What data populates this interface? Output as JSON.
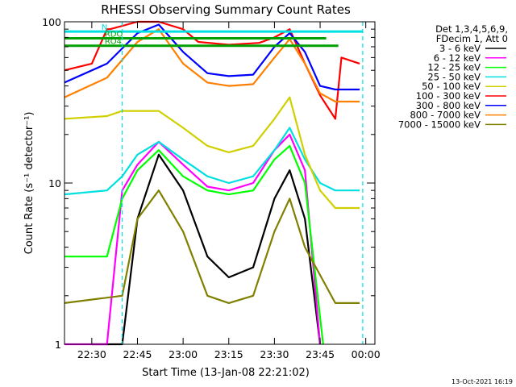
{
  "chart_data": {
    "type": "line",
    "title": "RHESSI Observing Summary Count Rates",
    "xlabel": "Start Time (13-Jan-08 22:21:02)",
    "ylabel": "Count Rate (s⁻¹ detector⁻¹)",
    "y_scale": "log",
    "ylim": [
      1,
      100
    ],
    "xlim": [
      "22:21:02",
      "00:03:00"
    ],
    "grid": false,
    "x_tick_labels": [
      "22:30",
      "22:45",
      "23:00",
      "23:15",
      "23:30",
      "23:45",
      "00:00"
    ],
    "x_tick_values": [
      "22:30",
      "22:45",
      "23:00",
      "23:15",
      "23:30",
      "23:45",
      "00:00"
    ],
    "y_tick_labels": [
      "1",
      "10",
      "100"
    ],
    "y_tick_values": [
      1,
      10,
      100
    ],
    "legend_placement": "right",
    "legend_header": [
      "Det 1,3,4,5,6,9,",
      "FDecim 1, Att 0"
    ],
    "footer_date": "13-Oct-2021 16:19",
    "flags": [
      {
        "label": "N",
        "color": "#00e0e0",
        "segments": [
          [
            "22:21",
            "23:59"
          ]
        ],
        "level": 87
      },
      {
        "label": "RDO",
        "color": "#00a000",
        "segments": [
          [
            "22:21",
            "23:47"
          ]
        ],
        "level": 79
      },
      {
        "label": "RO4",
        "color": "#00a000",
        "segments": [
          [
            "22:21",
            "23:51"
          ]
        ],
        "level": 71
      }
    ],
    "vlines": [
      {
        "time": "22:40",
        "color": "#00e0e0"
      },
      {
        "time": "23:59",
        "color": "#00e0e0"
      }
    ],
    "series": [
      {
        "name": "3 - 6 keV",
        "color": "#000000",
        "x": [
          "22:30",
          "22:40",
          "22:45",
          "22:52",
          "23:00",
          "23:08",
          "23:15",
          "23:23",
          "23:30",
          "23:35",
          "23:40",
          "23:45"
        ],
        "y": [
          1.0,
          1.0,
          6.0,
          15.0,
          9.0,
          3.5,
          2.6,
          3.0,
          8.0,
          12.0,
          6.0,
          1.0
        ]
      },
      {
        "name": "6 - 12 keV",
        "color": "#ff00ff",
        "x": [
          "22:21",
          "22:35",
          "22:40",
          "22:45",
          "22:52",
          "23:00",
          "23:08",
          "23:15",
          "23:23",
          "23:30",
          "23:35",
          "23:40",
          "23:45"
        ],
        "y": [
          1.0,
          1.0,
          9.0,
          13.0,
          18.0,
          13.0,
          9.5,
          9.0,
          10.0,
          16.0,
          20.0,
          12.0,
          1.0
        ]
      },
      {
        "name": "12 - 25 keV",
        "color": "#00ff00",
        "x": [
          "22:21",
          "22:35",
          "22:40",
          "22:45",
          "22:52",
          "23:00",
          "23:08",
          "23:15",
          "23:23",
          "23:30",
          "23:35",
          "23:40",
          "23:46"
        ],
        "y": [
          3.5,
          3.5,
          8.0,
          12.0,
          16.0,
          11.0,
          9.0,
          8.5,
          9.0,
          14.0,
          17.0,
          10.0,
          1.0
        ]
      },
      {
        "name": "25 - 50 keV",
        "color": "#00e0e0",
        "x": [
          "22:21",
          "22:35",
          "22:40",
          "22:45",
          "22:52",
          "23:00",
          "23:08",
          "23:15",
          "23:23",
          "23:30",
          "23:35",
          "23:40",
          "23:45",
          "23:50",
          "23:58"
        ],
        "y": [
          8.5,
          9.0,
          11.0,
          15.0,
          18.0,
          14.0,
          11.0,
          10.0,
          11.0,
          16.0,
          22.0,
          14.0,
          10.0,
          9.0,
          9.0
        ]
      },
      {
        "name": "50 - 100 keV",
        "color": "#d0d000",
        "x": [
          "22:21",
          "22:35",
          "22:40",
          "22:45",
          "22:52",
          "23:00",
          "23:08",
          "23:15",
          "23:23",
          "23:30",
          "23:35",
          "23:40",
          "23:45",
          "23:50",
          "23:58"
        ],
        "y": [
          25.0,
          26.0,
          28.0,
          28.0,
          28.0,
          22.0,
          17.0,
          15.5,
          17.0,
          25.0,
          34.0,
          15.0,
          9.0,
          7.0,
          7.0
        ]
      },
      {
        "name": "100 - 300 keV",
        "color": "#ff0000",
        "x": [
          "22:21",
          "22:30",
          "22:35",
          "22:36",
          "22:45",
          "22:52",
          "23:00",
          "23:05",
          "23:15",
          "23:25",
          "23:30",
          "23:35",
          "23:40",
          "23:45",
          "23:50",
          "23:52",
          "23:58"
        ],
        "y": [
          50.0,
          55.0,
          90.0,
          90.0,
          100.0,
          100.0,
          90.0,
          75.0,
          72.0,
          74.0,
          80.0,
          90.0,
          55.0,
          35.0,
          25.0,
          60.0,
          55.0
        ]
      },
      {
        "name": "300 - 800 keV",
        "color": "#0000ff",
        "x": [
          "22:21",
          "22:35",
          "22:45",
          "22:52",
          "23:00",
          "23:08",
          "23:15",
          "23:23",
          "23:30",
          "23:35",
          "23:40",
          "23:45",
          "23:50",
          "23:58"
        ],
        "y": [
          42.0,
          55.0,
          85.0,
          96.0,
          65.0,
          48.0,
          46.0,
          47.0,
          70.0,
          85.0,
          65.0,
          40.0,
          38.0,
          38.0
        ]
      },
      {
        "name": "800 - 7000 keV",
        "color": "#ff8000",
        "x": [
          "22:21",
          "22:35",
          "22:45",
          "22:52",
          "23:00",
          "23:08",
          "23:15",
          "23:23",
          "23:30",
          "23:35",
          "23:40",
          "23:45",
          "23:50",
          "23:58"
        ],
        "y": [
          34.0,
          45.0,
          75.0,
          90.0,
          55.0,
          42.0,
          40.0,
          41.0,
          60.0,
          78.0,
          55.0,
          36.0,
          32.0,
          32.0
        ]
      },
      {
        "name": "7000 - 15000 keV",
        "color": "#808000",
        "x": [
          "22:21",
          "22:40",
          "22:45",
          "22:52",
          "23:00",
          "23:08",
          "23:15",
          "23:23",
          "23:30",
          "23:35",
          "23:40",
          "23:50",
          "23:58"
        ],
        "y": [
          1.8,
          2.0,
          6.0,
          9.0,
          5.0,
          2.0,
          1.8,
          2.0,
          5.0,
          8.0,
          4.0,
          1.8,
          1.8
        ]
      }
    ]
  }
}
